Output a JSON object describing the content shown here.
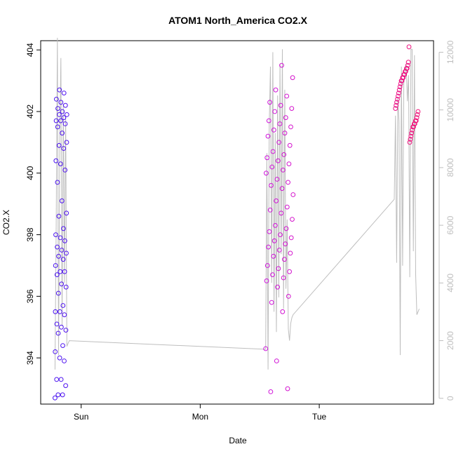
{
  "chart_data": {
    "type": "scatter",
    "title": "ATOM1 North_America CO2.X",
    "xlabel": "Date",
    "ylabel": "CO2.X",
    "x_ticks": [
      "Sun",
      "Mon",
      "Tue"
    ],
    "x_tick_values": [
      1,
      2,
      3
    ],
    "xlim": [
      0.66,
      3.96
    ],
    "ylim": [
      392.5,
      404.3
    ],
    "y_ticks": [
      394,
      396,
      398,
      400,
      402,
      404
    ],
    "y2_ticks": [
      0,
      2000,
      4000,
      6000,
      8000,
      10000,
      12000
    ],
    "y2lim": [
      -200,
      12400
    ],
    "colors": {
      "line": "#bebebe",
      "axis": "#000000",
      "right_axis": "#bebebe",
      "point_start": "#4a14f0",
      "point_mid": "#c814f0",
      "point_end": "#f0147a"
    },
    "series": [
      {
        "kind": "points",
        "clusters": [
          {
            "x_range": [
              0.78,
              0.88
            ],
            "y_values": [
              392.7,
              392.8,
              392.8,
              393.1,
              393.3,
              393.3,
              393.9,
              394.0,
              394.2,
              394.4,
              394.8,
              394.9,
              395.0,
              395.1,
              395.4,
              395.5,
              395.5,
              395.7,
              396.1,
              396.3,
              396.4,
              396.7,
              396.8,
              396.8,
              397.0,
              397.2,
              397.3,
              397.4,
              397.5,
              397.6,
              397.8,
              397.9,
              398.0,
              398.2,
              398.6,
              398.7,
              399.1,
              399.7,
              400.1,
              400.3,
              400.4,
              400.8,
              400.9,
              401.0,
              401.3,
              401.5,
              401.6,
              401.7,
              401.7,
              401.8,
              401.9,
              401.9,
              402.0,
              402.1,
              402.2,
              402.3,
              402.4,
              402.6,
              402.7
            ]
          },
          {
            "x_range": [
              2.55,
              2.78
            ],
            "y_values": [
              392.9,
              393.0,
              393.9,
              394.3,
              395.5,
              395.8,
              396.0,
              396.3,
              396.5,
              396.6,
              396.7,
              396.8,
              396.9,
              397.0,
              397.2,
              397.3,
              397.4,
              397.5,
              397.6,
              397.7,
              397.8,
              397.9,
              398.0,
              398.1,
              398.2,
              398.3,
              398.5,
              398.7,
              398.8,
              398.9,
              399.1,
              399.3,
              399.5,
              399.6,
              399.7,
              399.8,
              400.0,
              400.1,
              400.2,
              400.3,
              400.4,
              400.5,
              400.6,
              400.7,
              400.9,
              401.0,
              401.2,
              401.3,
              401.4,
              401.5,
              401.6,
              401.7,
              401.8,
              402.0,
              402.1,
              402.2,
              402.3,
              402.5,
              402.7,
              403.1,
              403.5
            ]
          },
          {
            "x_range": [
              3.64,
              3.83
            ],
            "y_values": [
              401.0,
              401.1,
              401.2,
              401.3,
              401.4,
              401.5,
              401.5,
              401.6,
              401.6,
              401.7,
              401.7,
              401.8,
              401.9,
              402.0,
              402.1,
              402.2,
              402.3,
              402.4,
              402.5,
              402.6,
              402.7,
              402.8,
              402.9,
              403.0,
              403.0,
              403.1,
              403.1,
              403.2,
              403.2,
              403.3,
              403.3,
              403.4,
              403.4,
              403.5,
              403.6,
              404.1
            ]
          }
        ]
      },
      {
        "kind": "line",
        "axis": "right",
        "x": [
          0.78,
          0.79,
          0.8,
          0.81,
          0.82,
          0.83,
          0.84,
          0.85,
          0.86,
          0.87,
          0.88,
          0.9,
          2.55,
          2.56,
          2.57,
          2.58,
          2.59,
          2.6,
          2.61,
          2.62,
          2.63,
          2.64,
          2.65,
          2.66,
          2.67,
          2.68,
          2.69,
          2.7,
          2.71,
          2.72,
          2.73,
          2.74,
          2.75,
          2.76,
          2.77,
          2.78,
          3.63,
          3.64,
          3.65,
          3.66,
          3.67,
          3.68,
          3.69,
          3.7,
          3.71,
          3.72,
          3.73,
          3.74,
          3.75,
          3.76,
          3.77,
          3.78,
          3.79,
          3.8,
          3.81,
          3.82,
          3.83,
          3.84
        ],
        "y": [
          1000,
          6000,
          12500,
          1500,
          9000,
          11800,
          2500,
          10200,
          4000,
          9800,
          1800,
          2000,
          1700,
          8500,
          1000,
          9500,
          11500,
          4000,
          12000,
          3000,
          9200,
          2300,
          10500,
          3500,
          11600,
          5000,
          12100,
          3100,
          10700,
          3800,
          6200,
          2400,
          2000,
          2600,
          2800,
          2900,
          6900,
          9800,
          4700,
          10400,
          9600,
          1500,
          11500,
          4600,
          10900,
          11300,
          11600,
          10300,
          11200,
          4200,
          12100,
          12100,
          5100,
          11900,
          4300,
          2900,
          3000,
          3100
        ]
      }
    ]
  }
}
